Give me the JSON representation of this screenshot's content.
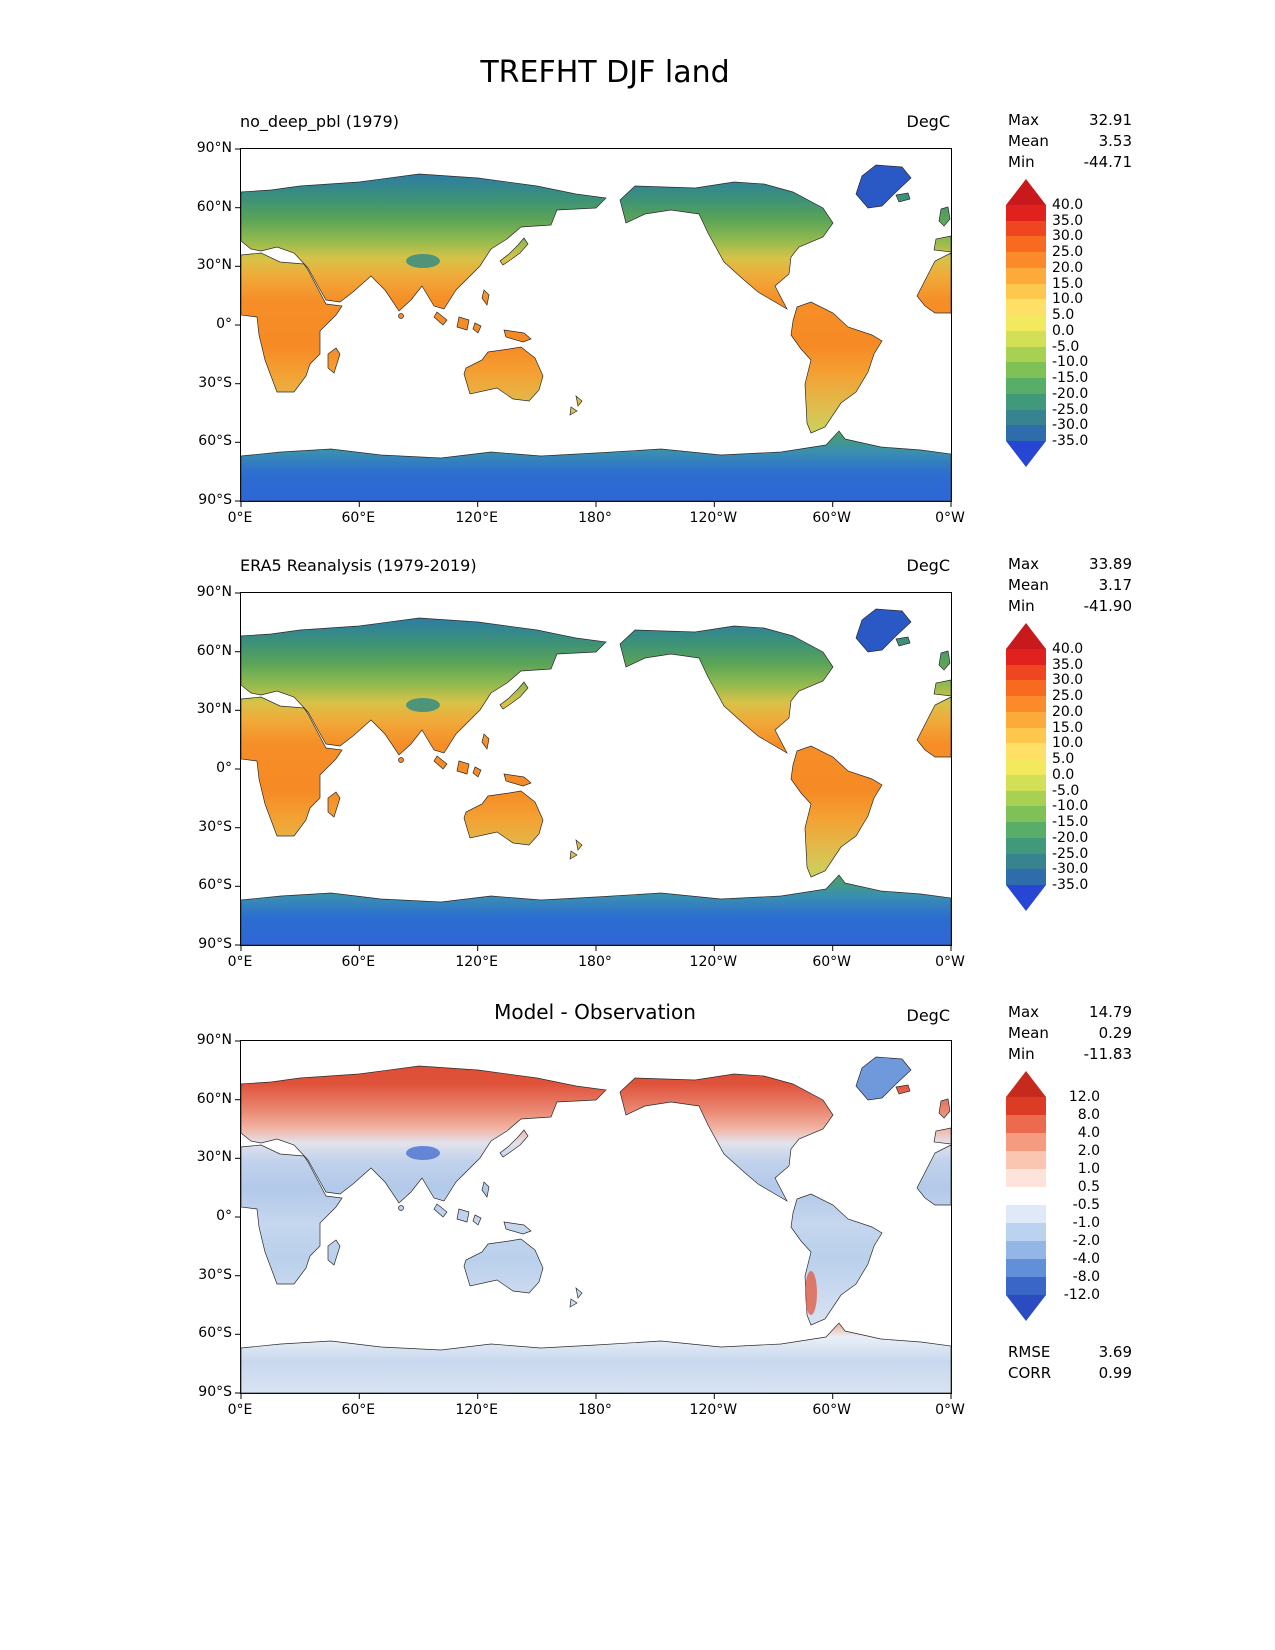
{
  "page_title": "TREFHT DJF land",
  "stats_labels": [
    "Max",
    "Mean",
    "Min"
  ],
  "axes": {
    "lat": [
      "90°N",
      "60°N",
      "30°N",
      "0°",
      "30°S",
      "60°S",
      "90°S"
    ],
    "lon": [
      "0°E",
      "60°E",
      "120°E",
      "180°",
      "120°W",
      "60°W",
      "0°W"
    ]
  },
  "panels": [
    {
      "title": "no_deep_pbl (1979)",
      "units": "DegC",
      "stats": {
        "max": "32.91",
        "mean": "3.53",
        "min": "-44.71"
      },
      "colorbar": {
        "ticks": [
          "40.0",
          "35.0",
          "30.0",
          "25.0",
          "20.0",
          "15.0",
          "10.0",
          "5.0",
          "0.0",
          "-5.0",
          "-10.0",
          "-15.0",
          "-20.0",
          "-25.0",
          "-30.0",
          "-35.0"
        ],
        "colors": [
          "#e0211e",
          "#ee4620",
          "#f76a20",
          "#fb8b2a",
          "#fcaa3a",
          "#fdc84d",
          "#fee066",
          "#f2e95f",
          "#d2e057",
          "#a8d053",
          "#7fc157",
          "#58ae68",
          "#41997c",
          "#37838f",
          "#2f6cab"
        ],
        "arrow_top": "#c81a1c",
        "arrow_bottom": "#2746d4"
      }
    },
    {
      "title": "ERA5 Reanalysis (1979-2019)",
      "units": "DegC",
      "stats": {
        "max": "33.89",
        "mean": "3.17",
        "min": "-41.90"
      },
      "colorbar": {
        "ticks": [
          "40.0",
          "35.0",
          "30.0",
          "25.0",
          "20.0",
          "15.0",
          "10.0",
          "5.0",
          "0.0",
          "-5.0",
          "-10.0",
          "-15.0",
          "-20.0",
          "-25.0",
          "-30.0",
          "-35.0"
        ],
        "colors": [
          "#e0211e",
          "#ee4620",
          "#f76a20",
          "#fb8b2a",
          "#fcaa3a",
          "#fdc84d",
          "#fee066",
          "#f2e95f",
          "#d2e057",
          "#a8d053",
          "#7fc157",
          "#58ae68",
          "#41997c",
          "#37838f",
          "#2f6cab"
        ],
        "arrow_top": "#c81a1c",
        "arrow_bottom": "#2746d4"
      }
    },
    {
      "title": "Model - Observation",
      "units": "DegC",
      "stats": {
        "max": "14.79",
        "mean": "0.29",
        "min": "-11.83"
      },
      "colorbar": {
        "ticks": [
          "12.0",
          "8.0",
          "4.0",
          "2.0",
          "1.0",
          "0.5",
          "-0.5",
          "-1.0",
          "-2.0",
          "-4.0",
          "-8.0",
          "-12.0"
        ],
        "colors": [
          "#dc3b26",
          "#ec6a4d",
          "#f59c80",
          "#fac5b1",
          "#fde3d9",
          "#ffffff",
          "#dfe9f7",
          "#bcd3f0",
          "#93b6e6",
          "#6290d8",
          "#3a66c8"
        ],
        "arrow_top": "#c62a1c",
        "arrow_bottom": "#2b4cc0"
      },
      "metrics": {
        "rmse_label": "RMSE",
        "rmse": "3.69",
        "corr_label": "CORR",
        "corr": "0.99"
      }
    }
  ],
  "chart_data": [
    {
      "type": "heatmap",
      "subtype": "global-temperature-map",
      "title": "no_deep_pbl (1979)",
      "units": "DegC",
      "projection": "equirectangular, longitude 0°E eastward to 0°W, land only",
      "x_ticks": [
        "0°E",
        "60°E",
        "120°E",
        "180°",
        "120°W",
        "60°W",
        "0°W"
      ],
      "y_ticks": [
        "90°N",
        "60°N",
        "30°N",
        "0°",
        "30°S",
        "60°S",
        "90°S"
      ],
      "stats": {
        "max": 32.91,
        "mean": 3.53,
        "min": -44.71
      },
      "colorbar_levels": [
        40,
        35,
        30,
        25,
        20,
        15,
        10,
        5,
        0,
        -5,
        -10,
        -15,
        -20,
        -25,
        -30,
        -35
      ],
      "colormap": "rainbow (red=warm, blue=cold)",
      "extend": "both"
    },
    {
      "type": "heatmap",
      "subtype": "global-temperature-map",
      "title": "ERA5 Reanalysis (1979-2019)",
      "units": "DegC",
      "projection": "equirectangular, longitude 0°E eastward to 0°W, land only",
      "x_ticks": [
        "0°E",
        "60°E",
        "120°E",
        "180°",
        "120°W",
        "60°W",
        "0°W"
      ],
      "y_ticks": [
        "90°N",
        "60°N",
        "30°N",
        "0°",
        "30°S",
        "60°S",
        "90°S"
      ],
      "stats": {
        "max": 33.89,
        "mean": 3.17,
        "min": -41.9
      },
      "colorbar_levels": [
        40,
        35,
        30,
        25,
        20,
        15,
        10,
        5,
        0,
        -5,
        -10,
        -15,
        -20,
        -25,
        -30,
        -35
      ],
      "colormap": "rainbow (red=warm, blue=cold)",
      "extend": "both"
    },
    {
      "type": "heatmap",
      "subtype": "global-difference-map",
      "title": "Model - Observation",
      "units": "DegC",
      "projection": "equirectangular, longitude 0°E eastward to 0°W, land only",
      "x_ticks": [
        "0°E",
        "60°E",
        "120°E",
        "180°",
        "120°W",
        "60°W",
        "0°W"
      ],
      "y_ticks": [
        "90°N",
        "60°N",
        "30°N",
        "0°",
        "30°S",
        "60°S",
        "90°S"
      ],
      "stats": {
        "max": 14.79,
        "mean": 0.29,
        "min": -11.83
      },
      "colorbar_levels": [
        12,
        8,
        4,
        2,
        1,
        0.5,
        -0.5,
        -1,
        -2,
        -4,
        -8,
        -12
      ],
      "colormap": "red-white-blue diverging (red=model warmer, blue=model colder)",
      "extend": "both",
      "rmse": 3.69,
      "corr": 0.99
    }
  ]
}
